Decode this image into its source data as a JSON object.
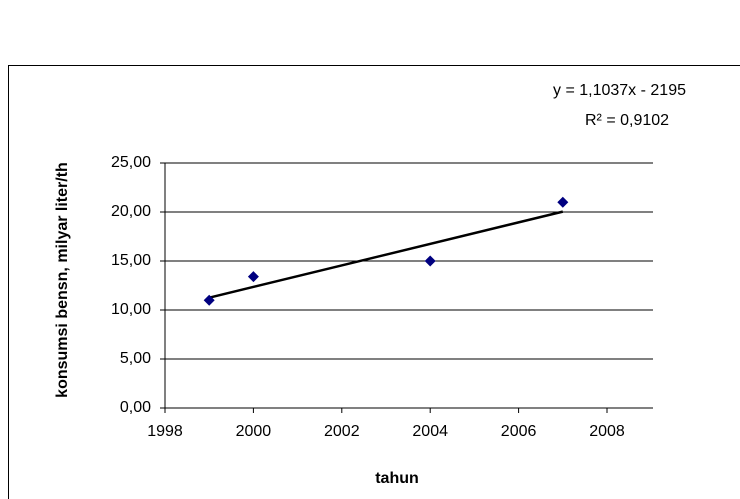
{
  "chart_data": {
    "type": "scatter",
    "x": [
      1999,
      2000,
      2004,
      2007
    ],
    "values": [
      11.0,
      13.4,
      15.0,
      21.0
    ],
    "color": "#000080",
    "trendline": true,
    "xlabel": "tahun",
    "ylabel": "konsumsi bensn, milyar liter/th",
    "annotations": [
      "y = 1,1037x - 2195",
      "R² = 0,9102"
    ],
    "xlim": [
      1998,
      2008
    ],
    "xticks": [
      1998,
      2000,
      2002,
      2004,
      2006,
      2008
    ],
    "ylim": [
      0,
      25
    ],
    "yticks": [
      {
        "value": 0,
        "label": "0,00"
      },
      {
        "value": 5,
        "label": "5,00"
      },
      {
        "value": 10,
        "label": "10,00"
      },
      {
        "value": 15,
        "label": "15,00"
      },
      {
        "value": 20,
        "label": "20,00"
      },
      {
        "value": 25,
        "label": "25,00"
      }
    ],
    "grid": true
  }
}
